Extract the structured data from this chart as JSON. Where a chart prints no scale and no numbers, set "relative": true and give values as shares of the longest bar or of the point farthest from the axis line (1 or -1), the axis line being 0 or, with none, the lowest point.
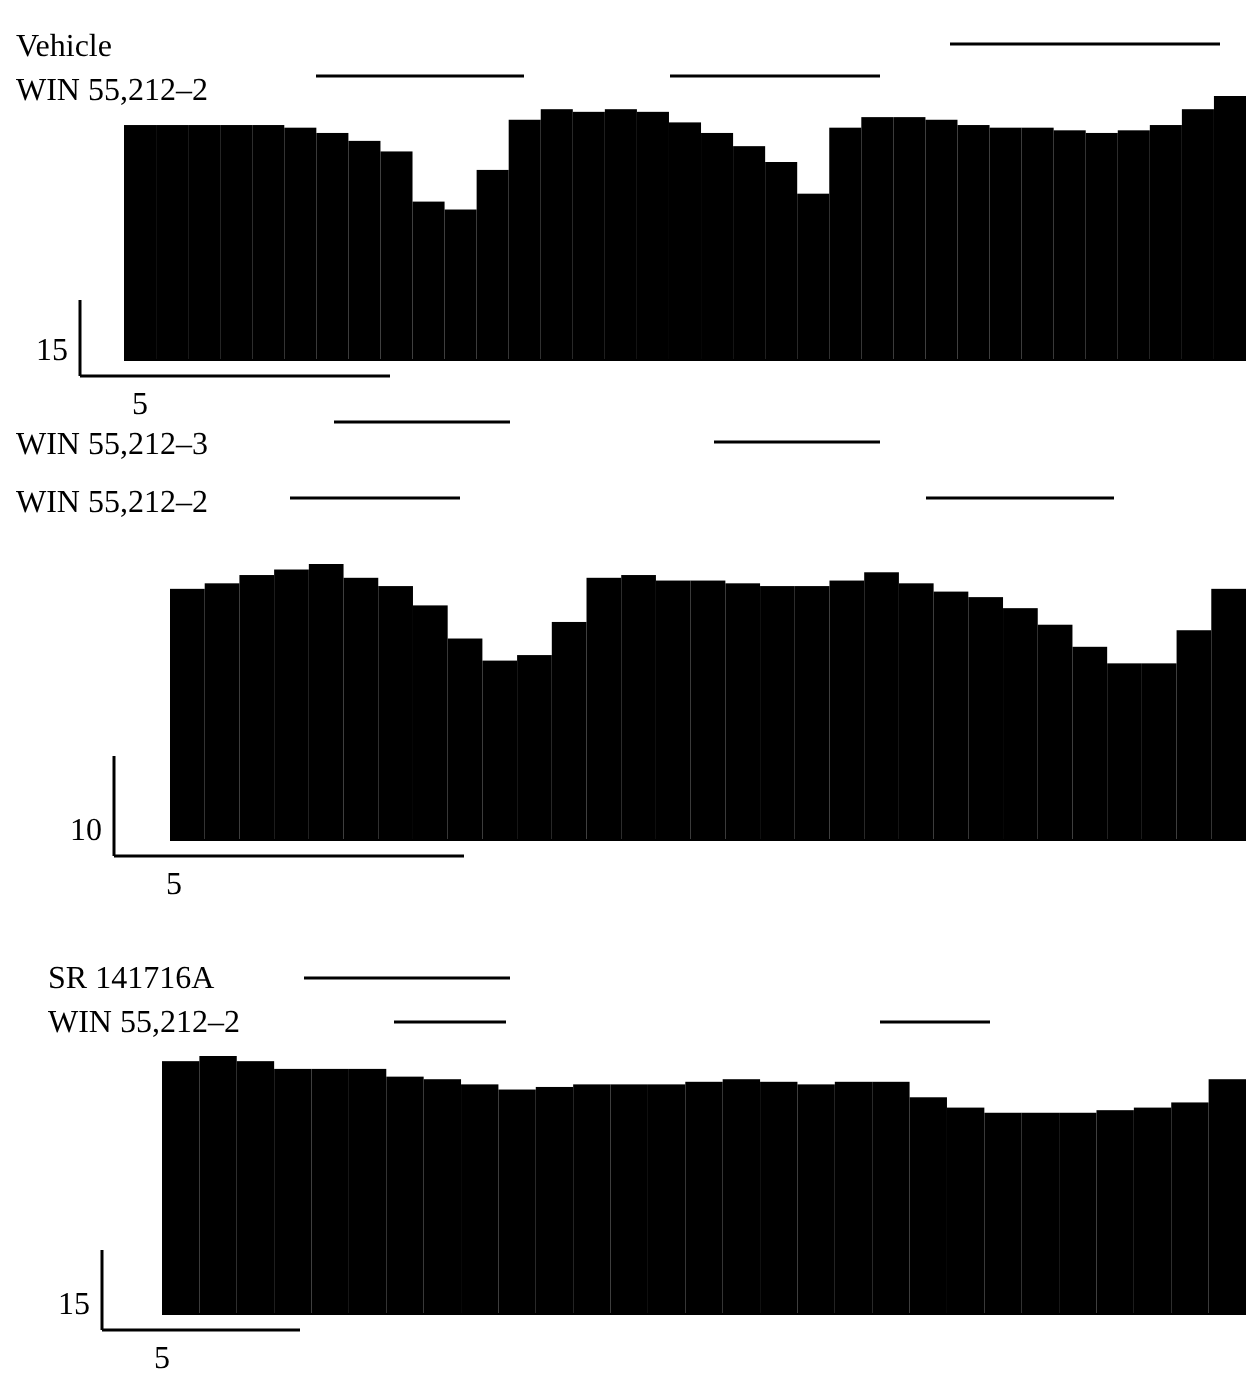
{
  "chart_data": [
    {
      "type": "bar",
      "relative": true,
      "categories": [
        null,
        null,
        null,
        null,
        null,
        null,
        null,
        null,
        null,
        null,
        null,
        null,
        null,
        null,
        null,
        null,
        null,
        null,
        null,
        null,
        null,
        null,
        null,
        null,
        null,
        null,
        null,
        null,
        null,
        null,
        null,
        null,
        null,
        null,
        null
      ],
      "series": [
        {
          "color": "#000000",
          "values": [
            0.89,
            0.89,
            0.89,
            0.89,
            0.89,
            0.88,
            0.86,
            0.83,
            0.79,
            0.6,
            0.57,
            0.72,
            0.91,
            0.95,
            0.94,
            0.95,
            0.94,
            0.9,
            0.86,
            0.81,
            0.75,
            0.63,
            0.88,
            0.92,
            0.92,
            0.91,
            0.89,
            0.88,
            0.88,
            0.87,
            0.86,
            0.87,
            0.89,
            0.95,
            1
          ]
        }
      ],
      "annotations": [
        "Vehicle",
        "WIN 55,212–2",
        "15",
        "5"
      ]
    },
    {
      "type": "bar",
      "relative": true,
      "categories": [
        null,
        null,
        null,
        null,
        null,
        null,
        null,
        null,
        null,
        null,
        null,
        null,
        null,
        null,
        null,
        null,
        null,
        null,
        null,
        null,
        null,
        null,
        null,
        null,
        null,
        null,
        null,
        null,
        null,
        null,
        null
      ],
      "series": [
        {
          "color": "#000000",
          "values": [
            0.91,
            0.93,
            0.96,
            0.98,
            1,
            0.95,
            0.92,
            0.85,
            0.73,
            0.65,
            0.67,
            0.79,
            0.95,
            0.96,
            0.94,
            0.94,
            0.93,
            0.92,
            0.92,
            0.94,
            0.97,
            0.93,
            0.9,
            0.88,
            0.84,
            0.78,
            0.7,
            0.64,
            0.64,
            0.76,
            0.91
          ]
        }
      ],
      "annotations": [
        "WIN 55,212–3",
        "WIN 55,212–2",
        "10",
        "5"
      ]
    },
    {
      "type": "bar",
      "relative": true,
      "categories": [
        null,
        null,
        null,
        null,
        null,
        null,
        null,
        null,
        null,
        null,
        null,
        null,
        null,
        null,
        null,
        null,
        null,
        null,
        null,
        null,
        null,
        null,
        null,
        null,
        null,
        null,
        null,
        null,
        null
      ],
      "series": [
        {
          "color": "#000000",
          "values": [
            0.98,
            1,
            0.98,
            0.95,
            0.95,
            0.95,
            0.92,
            0.91,
            0.89,
            0.87,
            0.88,
            0.89,
            0.89,
            0.89,
            0.9,
            0.91,
            0.9,
            0.89,
            0.9,
            0.9,
            0.84,
            0.8,
            0.78,
            0.78,
            0.78,
            0.79,
            0.8,
            0.82,
            0.91
          ]
        }
      ],
      "annotations": [
        "SR 141716A",
        "WIN 55,212–2",
        "15",
        "5"
      ]
    }
  ]
}
